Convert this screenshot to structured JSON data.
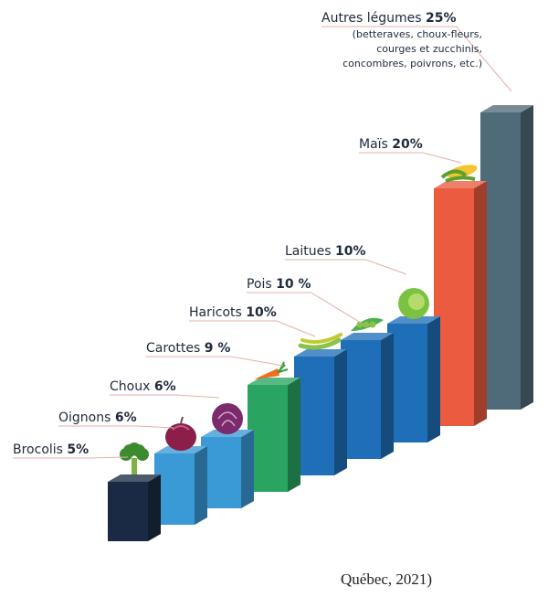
{
  "chart_data": {
    "type": "bar",
    "categories": [
      "Brocolis",
      "Oignons",
      "Choux",
      "Carottes",
      "Haricots",
      "Pois",
      "Laitues",
      "Maïs",
      "Autres légumes"
    ],
    "values": [
      5,
      6,
      6,
      9,
      10,
      10,
      10,
      20,
      25
    ],
    "value_labels": [
      "5%",
      "6%",
      "6%",
      "9 %",
      "10%",
      "10 %",
      "10%",
      "20%",
      "25%"
    ],
    "note": [
      "(betteraves, choux-fleurs,",
      "courges et zucchinis,",
      "concombres, poivrons, etc.)"
    ],
    "colors": [
      "#1b2a44",
      "#3a9ad6",
      "#3a9ad6",
      "#2aa561",
      "#1f6fb8",
      "#1f6fb8",
      "#1f6fb8",
      "#ea5b3f",
      "#4f6a78"
    ],
    "icons": [
      "broccoli-icon",
      "onion-icon",
      "red-cabbage-icon",
      "carrot-icon",
      "green-beans-icon",
      "pea-pod-icon",
      "lettuce-icon",
      "corn-icon",
      ""
    ],
    "title": "",
    "xlabel": "",
    "ylabel": "",
    "ylim": [
      0,
      25
    ],
    "grid": false,
    "legend": "none"
  },
  "source_text": "Québec, 2021)"
}
